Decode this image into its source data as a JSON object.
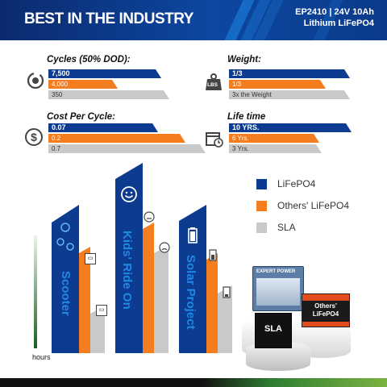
{
  "header": {
    "title": "BEST IN THE INDUSTRY",
    "model_line1": "EP2410 | 24V 10Ah",
    "model_line2": "Lithium LiFePO4"
  },
  "metrics": {
    "cycles": {
      "label": "Cycles (50% DOD):",
      "lifepo4": "7,500",
      "others": "4,000",
      "sla": "350"
    },
    "weight": {
      "label": "Weight:",
      "lifepo4": "1/3",
      "others": "1/3",
      "sla": "3x the Weight"
    },
    "cost": {
      "label": "Cost Per Cycle:",
      "lifepo4": "0.07",
      "others": "0.2",
      "sla": "0.7"
    },
    "life": {
      "label": "Life time",
      "lifepo4": "10 YRS.",
      "others": "6 Yrs.",
      "sla": "3 Yrs."
    }
  },
  "icons": {
    "cycles": "cycle-icon",
    "weight": "weight-icon",
    "cost": "dollar-icon",
    "life": "calendar-icon"
  },
  "weight_icon_text": "LBS",
  "columns": {
    "scooter": "Scooter",
    "kids": "Kids' Ride On",
    "solar": "Solar Project"
  },
  "legend": {
    "lifepo4": "LiFePO4",
    "others": "Others' LiFePO4",
    "sla": "SLA"
  },
  "axis": {
    "ylabel": "hours"
  },
  "products": {
    "sla_label": "SLA",
    "others_label": "Others'\nLiFePO4",
    "brand": "EXPERT POWER"
  },
  "colors": {
    "lifepo4": "#0d3b8f",
    "others": "#f47d20",
    "sla": "#c9c9c9",
    "accent": "#1e88e5"
  }
}
